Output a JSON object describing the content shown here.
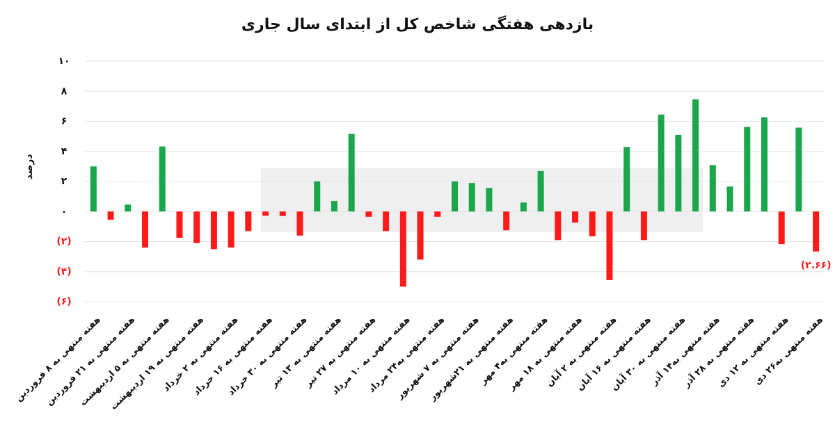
{
  "chart_data": {
    "type": "bar",
    "title": "بازدهی هفتگی شاخص کل از ابتدای سال جاری",
    "y_label": "درصد",
    "categories": [
      "هفته منتهی به ۸ فروردین",
      null,
      "هفته منتهی به ۲۱ فروردین",
      null,
      "هفته منتهی به ۵ اردیبهشت",
      null,
      "هفته منتهی به ۱۹ اردیبهشت",
      null,
      "هفته منتهی به ۲ خرداد",
      null,
      "هفته منتهی به ۱۶ خرداد",
      null,
      "هفته منتهی به ۳۰ خرداد",
      null,
      "هفته منتهی به ۱۳ تیر",
      null,
      "هفته منتهی به ۲۷ تیر",
      null,
      "هفته منتهی به ۱۰ مرداد",
      null,
      "هفته منتهی به۲۴ مرداد",
      null,
      "هفته منتهی به ۷ شهریور",
      null,
      "هفته منتهی به ۲۱شهریور",
      null,
      "هفته منتهی به۴ مهر",
      null,
      "هفته منتهی به ۱۸ مهر",
      null,
      "هفته منتهی به ۲ آبان",
      null,
      "هفته منتهی به ۱۶ آبان",
      null,
      "هفته منتهی به ۳۰ آبان",
      null,
      "هفته منتهی به۱۴ آذر",
      null,
      "هفته منتهی به ۲۸ آذر",
      null,
      "هفته منتهی به ۱۲ دی",
      null,
      "هفته منتهی به۲۶ دی"
    ],
    "values": [
      3.0,
      -0.55,
      0.46,
      -2.4,
      4.33,
      -1.75,
      -2.1,
      -2.5,
      -2.4,
      -1.3,
      -0.28,
      -0.3,
      -1.6,
      2.0,
      0.7,
      5.16,
      -0.35,
      -1.3,
      -5.0,
      -3.2,
      -0.35,
      2.0,
      1.9,
      1.57,
      -1.25,
      0.6,
      2.7,
      -1.9,
      -0.74,
      -1.65,
      -4.56,
      4.29,
      -1.9,
      6.45,
      5.1,
      7.46,
      3.09,
      1.66,
      5.62,
      6.27,
      -2.17,
      5.58,
      -2.66
    ],
    "value_labels": [
      null,
      null,
      null,
      null,
      null,
      null,
      null,
      null,
      null,
      null,
      null,
      null,
      null,
      null,
      null,
      null,
      null,
      null,
      null,
      null,
      null,
      null,
      null,
      null,
      null,
      null,
      null,
      null,
      null,
      null,
      null,
      null,
      null,
      null,
      null,
      null,
      null,
      null,
      null,
      null,
      null,
      null,
      "(۲.۶۶)"
    ],
    "positive_color": "#1aa64b",
    "negative_color": "#ff1a1a",
    "ylim": [
      -6,
      10
    ],
    "yticks": [
      {
        "value": 10,
        "label": "۱۰"
      },
      {
        "value": 8,
        "label": "۸"
      },
      {
        "value": 6,
        "label": "۶"
      },
      {
        "value": 4,
        "label": "۴"
      },
      {
        "value": 2,
        "label": "۲"
      },
      {
        "value": 0,
        "label": "۰"
      },
      {
        "value": -2,
        "label": "(۲)"
      },
      {
        "value": -4,
        "label": "(۴)"
      },
      {
        "value": -6,
        "label": "(۶)"
      }
    ],
    "grid": true
  }
}
